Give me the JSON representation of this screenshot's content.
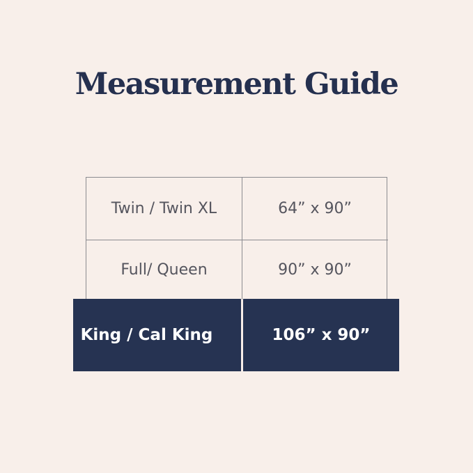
{
  "title": "Measurement Guide",
  "rows": [
    {
      "size": "Twin / Twin XL",
      "dimensions": "64” x 90”"
    },
    {
      "size": "Full/ Queen",
      "dimensions": "90” x 90”"
    },
    {
      "size": "King / Cal King",
      "dimensions": "106” x 90”",
      "highlighted": true
    }
  ],
  "colors": {
    "background": "#f8efea",
    "navy": "#263352",
    "border": "#8b8b90"
  }
}
